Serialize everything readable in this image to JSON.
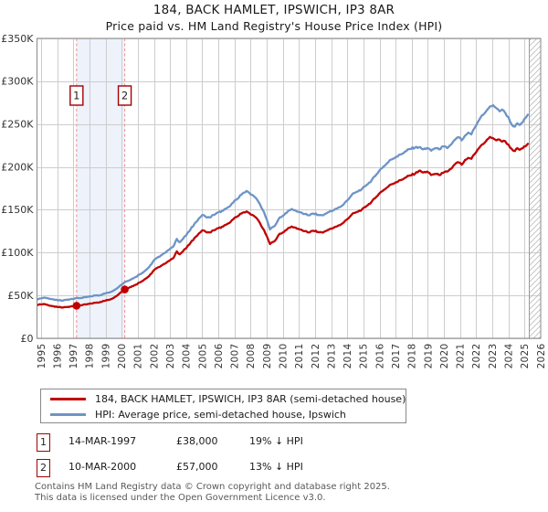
{
  "header": {
    "title": "184, BACK HAMLET, IPSWICH, IP3 8AR",
    "subtitle": "Price paid vs. HM Land Registry's House Price Index (HPI)"
  },
  "chart_data": {
    "type": "line",
    "unit": "GBP thousands",
    "x_axis": {
      "min": 1995,
      "max": 2026,
      "tick_interval": 1
    },
    "y_axis": {
      "min": 0,
      "max": 350,
      "tick_step": 50,
      "labels": [
        "£0",
        "£50K",
        "£100K",
        "£150K",
        "£200K",
        "£250K",
        "£300K",
        "£350K"
      ]
    },
    "grid": true,
    "legend_position": "bottom",
    "shaded_region": [
      1997.2,
      2000.19
    ],
    "hatch_from": 2025.25,
    "colors": {
      "property": "#c00000",
      "hpi": "#6d94c6",
      "shade": "#edf2fb",
      "grid": "#cdcdcd",
      "border": "#8a8a8a",
      "dashed": "#f09898",
      "hatch": "#bbbbbb",
      "marker_box_border": "#a40000"
    },
    "series": [
      {
        "name": "184, BACK HAMLET, IPSWICH, IP3 8AR (semi-detached house)",
        "color": "#c00000",
        "points": [
          [
            1994.8,
            39
          ],
          [
            1995,
            39.5
          ],
          [
            1995.2,
            40
          ],
          [
            1995.45,
            38.5
          ],
          [
            1995.7,
            37.5
          ],
          [
            1996,
            36.5
          ],
          [
            1996.3,
            36
          ],
          [
            1996.6,
            36.5
          ],
          [
            1996.9,
            37.5
          ],
          [
            1997.2,
            38
          ],
          [
            1997.5,
            38.5
          ],
          [
            1997.8,
            39.5
          ],
          [
            1998.1,
            40.5
          ],
          [
            1998.4,
            41.5
          ],
          [
            1998.7,
            42.5
          ],
          [
            1999,
            44
          ],
          [
            1999.3,
            45.5
          ],
          [
            1999.6,
            48.5
          ],
          [
            1999.9,
            53
          ],
          [
            2000.19,
            57
          ],
          [
            2000.5,
            59.5
          ],
          [
            2000.8,
            62
          ],
          [
            2001.1,
            65
          ],
          [
            2001.4,
            68.5
          ],
          [
            2001.7,
            72.5
          ],
          [
            2002,
            79.5
          ],
          [
            2002.3,
            83
          ],
          [
            2002.6,
            86.5
          ],
          [
            2002.9,
            90
          ],
          [
            2003.2,
            93.5
          ],
          [
            2003.42,
            101.5
          ],
          [
            2003.6,
            98
          ],
          [
            2003.8,
            101.5
          ],
          [
            2004,
            105
          ],
          [
            2004.2,
            109.5
          ],
          [
            2004.5,
            116.5
          ],
          [
            2004.8,
            122.5
          ],
          [
            2005,
            126
          ],
          [
            2005.2,
            124.5
          ],
          [
            2005.45,
            123.5
          ],
          [
            2005.7,
            126
          ],
          [
            2006,
            128.5
          ],
          [
            2006.3,
            130.5
          ],
          [
            2006.6,
            134
          ],
          [
            2006.9,
            138.5
          ],
          [
            2007.2,
            142.5
          ],
          [
            2007.5,
            146.5
          ],
          [
            2007.75,
            148
          ],
          [
            2008,
            144.5
          ],
          [
            2008.2,
            143
          ],
          [
            2008.5,
            137
          ],
          [
            2008.75,
            128.5
          ],
          [
            2009,
            119.5
          ],
          [
            2009.2,
            110
          ],
          [
            2009.4,
            112.5
          ],
          [
            2009.6,
            116
          ],
          [
            2009.8,
            122
          ],
          [
            2010,
            123.5
          ],
          [
            2010.3,
            128
          ],
          [
            2010.55,
            130.5
          ],
          [
            2010.8,
            129
          ],
          [
            2011.05,
            127
          ],
          [
            2011.3,
            125
          ],
          [
            2011.6,
            123.5
          ],
          [
            2011.9,
            125.5
          ],
          [
            2012.2,
            124
          ],
          [
            2012.5,
            123.5
          ],
          [
            2012.8,
            126.5
          ],
          [
            2013.1,
            128.5
          ],
          [
            2013.4,
            131
          ],
          [
            2013.7,
            134
          ],
          [
            2014,
            139
          ],
          [
            2014.3,
            145
          ],
          [
            2014.6,
            147.5
          ],
          [
            2014.9,
            150
          ],
          [
            2015.2,
            154.5
          ],
          [
            2015.5,
            159
          ],
          [
            2015.8,
            165
          ],
          [
            2016.1,
            171
          ],
          [
            2016.4,
            175
          ],
          [
            2016.7,
            179.5
          ],
          [
            2017,
            182
          ],
          [
            2017.3,
            184.5
          ],
          [
            2017.6,
            187.5
          ],
          [
            2017.9,
            190
          ],
          [
            2018.2,
            192
          ],
          [
            2018.45,
            195.5
          ],
          [
            2018.7,
            193.5
          ],
          [
            2018.95,
            194.5
          ],
          [
            2019.2,
            190.5
          ],
          [
            2019.45,
            192
          ],
          [
            2019.7,
            190.5
          ],
          [
            2019.95,
            193
          ],
          [
            2020.2,
            194.5
          ],
          [
            2020.5,
            199
          ],
          [
            2020.75,
            204.5
          ],
          [
            2020.95,
            205
          ],
          [
            2021.1,
            202.5
          ],
          [
            2021.3,
            208
          ],
          [
            2021.5,
            210.5
          ],
          [
            2021.7,
            209.5
          ],
          [
            2021.9,
            215
          ],
          [
            2022.1,
            220.5
          ],
          [
            2022.35,
            226
          ],
          [
            2022.6,
            230
          ],
          [
            2022.85,
            235
          ],
          [
            2023.05,
            233.5
          ],
          [
            2023.25,
            231
          ],
          [
            2023.45,
            232
          ],
          [
            2023.6,
            229.5
          ],
          [
            2023.8,
            230
          ],
          [
            2024,
            226
          ],
          [
            2024.2,
            221
          ],
          [
            2024.4,
            218.5
          ],
          [
            2024.55,
            222
          ],
          [
            2024.7,
            220
          ],
          [
            2024.9,
            222
          ],
          [
            2025.05,
            224
          ],
          [
            2025.2,
            227
          ]
        ]
      },
      {
        "name": "HPI: Average price, semi-detached house, Ipswich",
        "color": "#6d94c6",
        "points": [
          [
            1994.8,
            45.5
          ],
          [
            1995,
            46.5
          ],
          [
            1995.2,
            47.5
          ],
          [
            1995.45,
            46.5
          ],
          [
            1995.7,
            45.5
          ],
          [
            1996,
            44.5
          ],
          [
            1996.3,
            44
          ],
          [
            1996.6,
            45
          ],
          [
            1996.9,
            46
          ],
          [
            1997.2,
            47
          ],
          [
            1997.5,
            47
          ],
          [
            1997.8,
            48
          ],
          [
            1998.1,
            49
          ],
          [
            1998.4,
            50
          ],
          [
            1998.7,
            50.5
          ],
          [
            1999,
            52.5
          ],
          [
            1999.3,
            54
          ],
          [
            1999.6,
            57
          ],
          [
            1999.9,
            61.5
          ],
          [
            2000.19,
            65.5
          ],
          [
            2000.5,
            68
          ],
          [
            2000.8,
            71
          ],
          [
            2001.1,
            74.5
          ],
          [
            2001.4,
            78
          ],
          [
            2001.7,
            83
          ],
          [
            2002,
            91
          ],
          [
            2002.3,
            95
          ],
          [
            2002.6,
            99
          ],
          [
            2002.9,
            103
          ],
          [
            2003.2,
            107
          ],
          [
            2003.42,
            116
          ],
          [
            2003.6,
            112
          ],
          [
            2003.8,
            116
          ],
          [
            2004,
            120
          ],
          [
            2004.2,
            125
          ],
          [
            2004.5,
            133
          ],
          [
            2004.8,
            140
          ],
          [
            2005,
            144
          ],
          [
            2005.2,
            142
          ],
          [
            2005.45,
            141
          ],
          [
            2005.7,
            144
          ],
          [
            2006,
            147
          ],
          [
            2006.3,
            149
          ],
          [
            2006.6,
            153
          ],
          [
            2006.9,
            158
          ],
          [
            2007.2,
            163
          ],
          [
            2007.5,
            169
          ],
          [
            2007.75,
            172
          ],
          [
            2008,
            168
          ],
          [
            2008.2,
            166
          ],
          [
            2008.5,
            159
          ],
          [
            2008.75,
            150
          ],
          [
            2009,
            139
          ],
          [
            2009.2,
            127
          ],
          [
            2009.4,
            130
          ],
          [
            2009.6,
            134
          ],
          [
            2009.8,
            141
          ],
          [
            2010,
            143
          ],
          [
            2010.3,
            148
          ],
          [
            2010.55,
            151
          ],
          [
            2010.8,
            149
          ],
          [
            2011.05,
            147
          ],
          [
            2011.3,
            145
          ],
          [
            2011.6,
            143.5
          ],
          [
            2011.9,
            145.5
          ],
          [
            2012.2,
            144
          ],
          [
            2012.5,
            143.5
          ],
          [
            2012.8,
            147
          ],
          [
            2013.1,
            149
          ],
          [
            2013.4,
            152
          ],
          [
            2013.7,
            155
          ],
          [
            2014,
            161
          ],
          [
            2014.3,
            168
          ],
          [
            2014.6,
            171
          ],
          [
            2014.9,
            174
          ],
          [
            2015.2,
            179
          ],
          [
            2015.5,
            184
          ],
          [
            2015.8,
            191
          ],
          [
            2016.1,
            198
          ],
          [
            2016.4,
            203
          ],
          [
            2016.7,
            208.5
          ],
          [
            2017,
            211.5
          ],
          [
            2017.3,
            214.5
          ],
          [
            2017.6,
            218
          ],
          [
            2017.9,
            221
          ],
          [
            2018.2,
            222.5
          ],
          [
            2018.45,
            223
          ],
          [
            2018.7,
            220.5
          ],
          [
            2018.95,
            222
          ],
          [
            2019.2,
            219
          ],
          [
            2019.45,
            222
          ],
          [
            2019.7,
            220.5
          ],
          [
            2019.95,
            224
          ],
          [
            2020.2,
            222
          ],
          [
            2020.5,
            227.5
          ],
          [
            2020.75,
            233
          ],
          [
            2020.95,
            234.5
          ],
          [
            2021.1,
            231
          ],
          [
            2021.3,
            236.5
          ],
          [
            2021.5,
            240
          ],
          [
            2021.7,
            238
          ],
          [
            2021.9,
            245.5
          ],
          [
            2022.1,
            252.5
          ],
          [
            2022.35,
            260
          ],
          [
            2022.6,
            264.5
          ],
          [
            2022.85,
            270.5
          ],
          [
            2023.05,
            272
          ],
          [
            2023.25,
            268.5
          ],
          [
            2023.45,
            265
          ],
          [
            2023.6,
            267
          ],
          [
            2023.8,
            263
          ],
          [
            2024,
            258
          ],
          [
            2024.2,
            249.5
          ],
          [
            2024.4,
            247
          ],
          [
            2024.55,
            251
          ],
          [
            2024.7,
            249
          ],
          [
            2024.9,
            252.5
          ],
          [
            2025.05,
            257
          ],
          [
            2025.2,
            261
          ]
        ]
      }
    ],
    "sales": [
      {
        "n": "1",
        "year": 1997.2,
        "value_k": 38,
        "date": "14-MAR-1997",
        "price": "£38,000",
        "vs_hpi": "19% ↓ HPI"
      },
      {
        "n": "2",
        "year": 2000.19,
        "value_k": 57,
        "date": "10-MAR-2000",
        "price": "£57,000",
        "vs_hpi": "13% ↓ HPI"
      }
    ]
  },
  "footer": {
    "line1": "Contains HM Land Registry data © Crown copyright and database right 2025.",
    "line2": "This data is licensed under the Open Government Licence v3.0."
  }
}
